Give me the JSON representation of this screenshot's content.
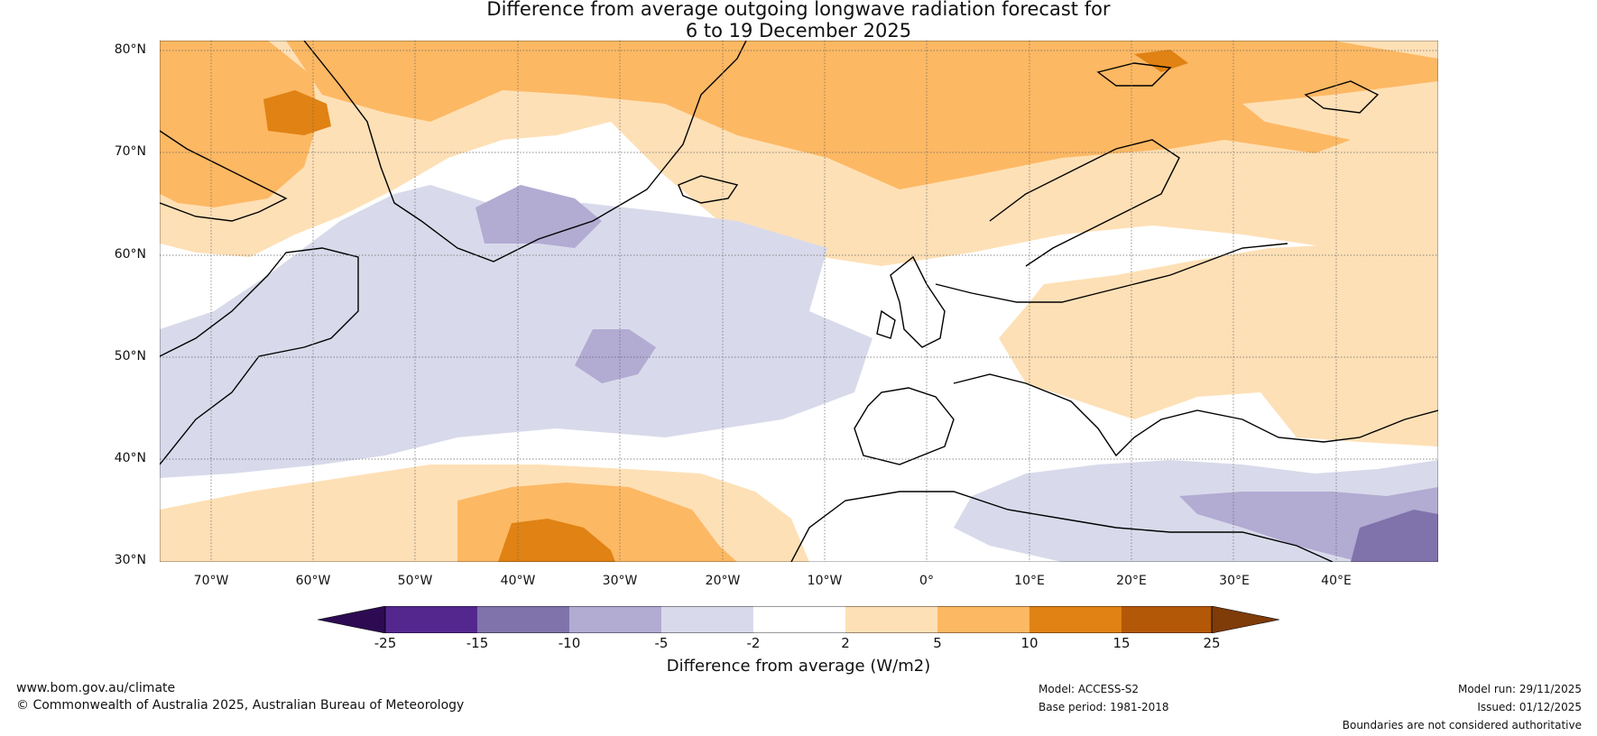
{
  "title": {
    "line1": "Difference from average outgoing longwave radiation forecast for",
    "line2": "6 to 19 December 2025"
  },
  "map": {
    "latitude_labels": [
      "80°N",
      "70°N",
      "60°N",
      "50°N",
      "40°N",
      "30°N"
    ],
    "longitude_labels": [
      "70°W",
      "60°W",
      "50°W",
      "40°W",
      "30°W",
      "20°W",
      "10°W",
      "0°",
      "10°E",
      "20°E",
      "30°E",
      "40°E"
    ],
    "extent": {
      "lon_min": -75,
      "lon_max": 50,
      "lat_min": 30,
      "lat_max": 81
    }
  },
  "legend": {
    "label": "Difference from average (W/m2)",
    "ticks": [
      "-25",
      "-15",
      "-10",
      "-5",
      "-2",
      "2",
      "5",
      "10",
      "15",
      "25"
    ],
    "colors": [
      "#2d0a52",
      "#54278f",
      "#8073ac",
      "#b2abd2",
      "#d8daeb",
      "#ffffff",
      "#fee0b6",
      "#fdb863",
      "#e08214",
      "#b35806",
      "#7f3b08"
    ]
  },
  "footer": {
    "website": "www.bom.gov.au/climate",
    "copyright": "© Commonwealth of Australia 2025, Australian Bureau of Meteorology",
    "model": "Model: ACCESS-S2",
    "base_period": "Base period: 1981-2018",
    "model_run": "Model run: 29/11/2025",
    "issued": "Issued: 01/12/2025",
    "disclaimer": "Boundaries are not considered authoritative"
  }
}
